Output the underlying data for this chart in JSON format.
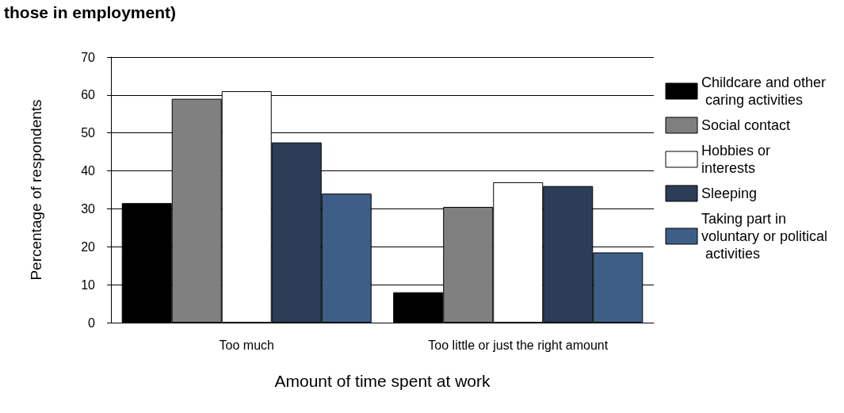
{
  "chart_data": {
    "type": "bar",
    "title": "those in employment)",
    "xlabel": "Amount of time spent at work",
    "ylabel": "Percentage of respondents",
    "categories": [
      "Too much",
      "Too little or just the right amount"
    ],
    "series": [
      {
        "name": "Childcare and other caring activities",
        "color": "#000000",
        "values": [
          31.5,
          8
        ]
      },
      {
        "name": "Social contact",
        "color": "#808080",
        "values": [
          59,
          30.5
        ]
      },
      {
        "name": "Hobbies or interests",
        "color": "#ffffff",
        "values": [
          61,
          37
        ]
      },
      {
        "name": "Sleeping",
        "color": "#2b3d57",
        "values": [
          47.5,
          36
        ]
      },
      {
        "name": "Taking part in voluntary or political activities",
        "color": "#3d5f87",
        "values": [
          34,
          18.5
        ]
      }
    ],
    "ylim": [
      0,
      70
    ],
    "yticks": [
      0,
      10,
      20,
      30,
      40,
      50,
      60,
      70
    ],
    "grid": "y",
    "legend": "right"
  }
}
